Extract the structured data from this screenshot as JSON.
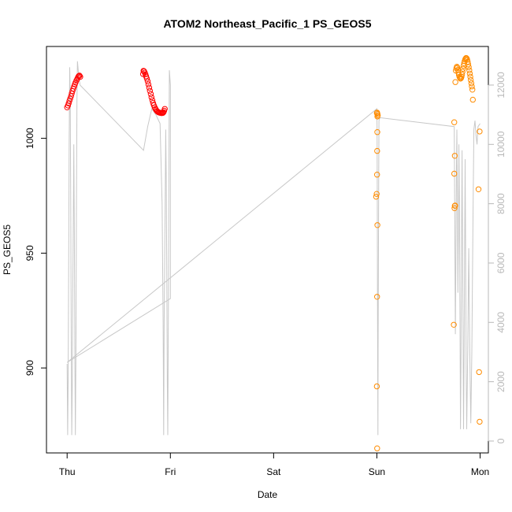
{
  "chart_data": {
    "type": "scatter",
    "title": "ATOM2 Northeast_Pacific_1 PS_GEOS5",
    "xlabel": "Date",
    "ylabel": "PS_GEOS5",
    "x_tick_labels": [
      "Thu",
      "Fri",
      "Sat",
      "Sun",
      "Mon"
    ],
    "x_tick_values": [
      0,
      1,
      2,
      3,
      4
    ],
    "xlim": [
      -0.2,
      4.08
    ],
    "ylim": [
      863,
      1040
    ],
    "y_ticks": [
      900,
      950,
      1000
    ],
    "y2_ticks": [
      0,
      2000,
      4000,
      6000,
      8000,
      10000,
      12000
    ],
    "y2lim": [
      -400,
      13300
    ],
    "grid": false,
    "colors": {
      "early_points": "#ff0000",
      "late_points": "#ff8c00",
      "altitude_line": "#c8c8c8",
      "axis": "#000000",
      "right_axis": "#b8b8b8"
    },
    "series": [
      {
        "marker": "circle",
        "color": "#ff0000",
        "points": [
          [
            0.0,
            1013.5
          ],
          [
            0.008,
            1014.3
          ],
          [
            0.015,
            1015.2
          ],
          [
            0.022,
            1016.3
          ],
          [
            0.03,
            1017.3
          ],
          [
            0.038,
            1018.4
          ],
          [
            0.045,
            1019.5
          ],
          [
            0.052,
            1020.6
          ],
          [
            0.06,
            1021.6
          ],
          [
            0.068,
            1022.6
          ],
          [
            0.075,
            1023.5
          ],
          [
            0.082,
            1024.3
          ],
          [
            0.09,
            1025.2
          ],
          [
            0.098,
            1025.9
          ],
          [
            0.105,
            1026.6
          ],
          [
            0.112,
            1027.1
          ],
          [
            0.12,
            1027.3
          ],
          [
            0.127,
            1026.8
          ],
          [
            0.74,
            1029.4
          ],
          [
            0.746,
            1029.2
          ],
          [
            0.752,
            1028.6
          ],
          [
            0.758,
            1027.9
          ],
          [
            0.765,
            1027.0
          ],
          [
            0.772,
            1026.0
          ],
          [
            0.78,
            1024.8
          ],
          [
            0.787,
            1023.5
          ],
          [
            0.795,
            1022.1
          ],
          [
            0.802,
            1020.7
          ],
          [
            0.81,
            1019.3
          ],
          [
            0.817,
            1017.9
          ],
          [
            0.825,
            1016.6
          ],
          [
            0.832,
            1015.4
          ],
          [
            0.84,
            1014.4
          ],
          [
            0.848,
            1013.5
          ],
          [
            0.856,
            1012.8
          ],
          [
            0.864,
            1012.2
          ],
          [
            0.872,
            1011.8
          ],
          [
            0.88,
            1011.5
          ],
          [
            0.888,
            1011.3
          ],
          [
            0.896,
            1011.2
          ],
          [
            0.904,
            1011.1
          ],
          [
            0.912,
            1011.0
          ],
          [
            0.92,
            1011.0
          ],
          [
            0.928,
            1011.1
          ],
          [
            0.934,
            1011.4
          ],
          [
            0.94,
            1012.0
          ],
          [
            0.946,
            1012.8
          ],
          [
            0.735,
            1028.0
          ]
        ]
      },
      {
        "marker": "circle",
        "color": "#ff8c00",
        "points": [
          [
            3.0,
            1011.0
          ],
          [
            3.003,
            1011.2
          ],
          [
            3.006,
            1010.6
          ],
          [
            3.009,
            1010.0
          ],
          [
            3.005,
            1009.5
          ],
          [
            3.004,
            1002.7
          ],
          [
            3.003,
            994.5
          ],
          [
            3.002,
            984.2
          ],
          [
            2.998,
            975.8
          ],
          [
            2.993,
            974.6
          ],
          [
            3.005,
            962.2
          ],
          [
            3.002,
            931.0
          ],
          [
            3.0,
            892.0
          ],
          [
            3.003,
            865.0
          ],
          [
            3.001,
            861.0
          ],
          [
            3.75,
            1007.0
          ],
          [
            3.755,
            992.4
          ],
          [
            3.75,
            984.6
          ],
          [
            3.755,
            970.6
          ],
          [
            3.752,
            969.6
          ],
          [
            3.758,
            970.7
          ],
          [
            3.745,
            918.8
          ],
          [
            3.76,
            1024.5
          ],
          [
            3.765,
            1029.5
          ],
          [
            3.77,
            1030.5
          ],
          [
            3.775,
            1031.2
          ],
          [
            3.78,
            1030.8
          ],
          [
            3.785,
            1029.8
          ],
          [
            3.79,
            1028.6
          ],
          [
            3.795,
            1027.6
          ],
          [
            3.8,
            1026.8
          ],
          [
            3.805,
            1026.3
          ],
          [
            3.81,
            1026.0
          ],
          [
            3.815,
            1026.2
          ],
          [
            3.82,
            1026.8
          ],
          [
            3.825,
            1027.8
          ],
          [
            3.83,
            1029.0
          ],
          [
            3.835,
            1030.3
          ],
          [
            3.84,
            1031.6
          ],
          [
            3.845,
            1032.7
          ],
          [
            3.85,
            1033.6
          ],
          [
            3.855,
            1034.3
          ],
          [
            3.86,
            1034.8
          ],
          [
            3.865,
            1035.0
          ],
          [
            3.87,
            1034.8
          ],
          [
            3.875,
            1034.2
          ],
          [
            3.88,
            1033.3
          ],
          [
            3.885,
            1032.2
          ],
          [
            3.89,
            1031.0
          ],
          [
            3.895,
            1029.6
          ],
          [
            3.9,
            1028.2
          ],
          [
            3.905,
            1026.8
          ],
          [
            3.91,
            1025.4
          ],
          [
            3.915,
            1024.0
          ],
          [
            3.92,
            1022.6
          ],
          [
            3.925,
            1021.2
          ],
          [
            3.93,
            1016.8
          ],
          [
            3.995,
            1003.0
          ],
          [
            3.985,
            977.8
          ],
          [
            3.99,
            898.2
          ],
          [
            3.995,
            876.6
          ]
        ]
      },
      {
        "marker": "line",
        "color": "#c8c8c8",
        "axis": "right",
        "points": [
          [
            0.0,
            2600
          ],
          [
            0.005,
            200
          ],
          [
            0.01,
            2000
          ],
          [
            0.015,
            6000
          ],
          [
            0.02,
            10000
          ],
          [
            0.025,
            12600
          ],
          [
            0.03,
            11800
          ],
          [
            0.035,
            8000
          ],
          [
            0.04,
            3000
          ],
          [
            0.045,
            200
          ],
          [
            0.05,
            2000
          ],
          [
            0.055,
            5000
          ],
          [
            0.06,
            7500
          ],
          [
            0.065,
            10000
          ],
          [
            0.07,
            7000
          ],
          [
            0.075,
            3000
          ],
          [
            0.08,
            200
          ],
          [
            0.085,
            3000
          ],
          [
            0.09,
            7500
          ],
          [
            0.095,
            11500
          ],
          [
            0.1,
            12800
          ],
          [
            0.105,
            12600
          ],
          [
            0.11,
            12400
          ],
          [
            0.115,
            12200
          ],
          [
            0.12,
            12150
          ],
          [
            0.125,
            12000
          ],
          [
            0.74,
            9800
          ],
          [
            0.78,
            10600
          ],
          [
            0.82,
            11200
          ],
          [
            0.86,
            11000
          ],
          [
            0.9,
            10700
          ],
          [
            0.92,
            8000
          ],
          [
            0.93,
            4000
          ],
          [
            0.935,
            200
          ],
          [
            0.94,
            4000
          ],
          [
            0.95,
            8000
          ],
          [
            0.955,
            10500
          ],
          [
            0.96,
            9000
          ],
          [
            0.965,
            6000
          ],
          [
            0.97,
            2000
          ],
          [
            0.975,
            200
          ],
          [
            0.98,
            4000
          ],
          [
            0.985,
            8000
          ],
          [
            0.99,
            12500
          ],
          [
            1.0,
            12000
          ],
          [
            1.0,
            4800
          ],
          [
            0.0,
            2650
          ],
          [
            3.0,
            11200
          ],
          [
            3.002,
            10600
          ],
          [
            3.004,
            8000
          ],
          [
            3.006,
            5000
          ],
          [
            3.008,
            2500
          ],
          [
            3.01,
            200
          ],
          [
            3.012,
            3000
          ],
          [
            3.015,
            6000
          ],
          [
            3.018,
            9000
          ],
          [
            3.02,
            10800
          ],
          [
            3.03,
            10900
          ],
          [
            3.75,
            10600
          ],
          [
            3.76,
            3600
          ],
          [
            3.765,
            6000
          ],
          [
            3.77,
            9000
          ],
          [
            3.775,
            10500
          ],
          [
            3.78,
            8000
          ],
          [
            3.785,
            5000
          ],
          [
            3.79,
            7000
          ],
          [
            3.795,
            10000
          ],
          [
            3.8,
            8000
          ],
          [
            3.805,
            4000
          ],
          [
            3.81,
            400
          ],
          [
            3.815,
            3000
          ],
          [
            3.82,
            6500
          ],
          [
            3.825,
            9800
          ],
          [
            3.83,
            7000
          ],
          [
            3.835,
            3500
          ],
          [
            3.84,
            400
          ],
          [
            3.845,
            3000
          ],
          [
            3.85,
            6500
          ],
          [
            3.855,
            9500
          ],
          [
            3.86,
            6000
          ],
          [
            3.865,
            2500
          ],
          [
            3.87,
            400
          ],
          [
            3.88,
            3000
          ],
          [
            3.89,
            6500
          ],
          [
            3.9,
            3000
          ],
          [
            3.91,
            600
          ],
          [
            3.92,
            3000
          ],
          [
            3.93,
            7000
          ],
          [
            3.94,
            10500
          ],
          [
            3.95,
            10800
          ],
          [
            3.96,
            10300
          ],
          [
            3.97,
            10000
          ],
          [
            3.98,
            10600
          ],
          [
            4.0,
            10700
          ]
        ]
      }
    ]
  }
}
